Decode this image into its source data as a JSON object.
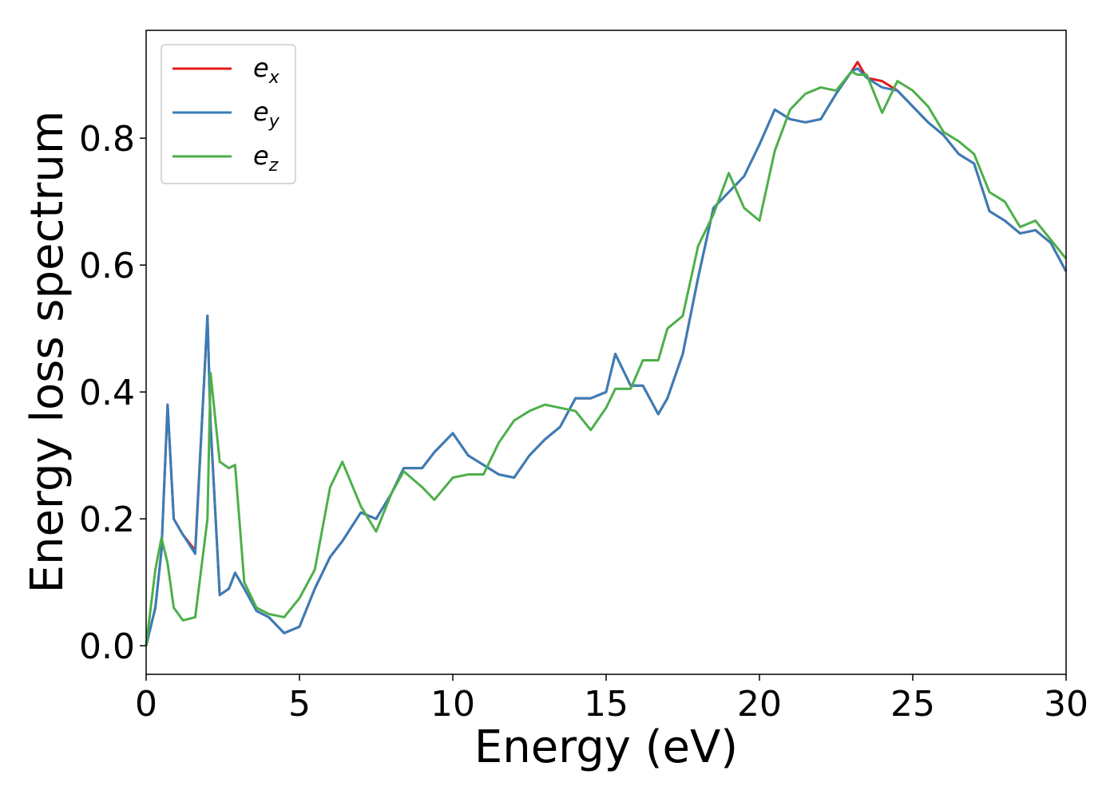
{
  "chart_data": {
    "type": "line",
    "xlabel": "Energy (eV)",
    "ylabel": "Energy loss spectrum",
    "x": [
      0,
      0.3,
      0.5,
      0.7,
      0.9,
      1.2,
      1.6,
      2.0,
      2.1,
      2.4,
      2.7,
      2.9,
      3.2,
      3.6,
      4.0,
      4.5,
      5.0,
      5.5,
      6.0,
      6.4,
      7.0,
      7.5,
      8.0,
      8.4,
      9.0,
      9.4,
      10.0,
      10.5,
      11.0,
      11.5,
      12.0,
      12.5,
      13.0,
      13.5,
      14.0,
      14.5,
      15.0,
      15.3,
      15.8,
      16.2,
      16.7,
      17.0,
      17.5,
      18.0,
      18.5,
      19.0,
      19.5,
      20.0,
      20.5,
      21.0,
      21.5,
      22.0,
      22.5,
      23.0,
      23.2,
      23.5,
      24.0,
      24.5,
      25.0,
      25.5,
      26.0,
      26.5,
      27.0,
      27.5,
      28.0,
      28.5,
      29.0,
      29.5,
      30.0
    ],
    "series": [
      {
        "name": "e_x",
        "color": "#e41a1c",
        "values": [
          0.0,
          0.06,
          0.15,
          0.38,
          0.2,
          0.175,
          0.15,
          0.52,
          0.35,
          0.08,
          0.09,
          0.115,
          0.09,
          0.055,
          0.045,
          0.02,
          0.03,
          0.09,
          0.14,
          0.165,
          0.21,
          0.2,
          0.24,
          0.28,
          0.28,
          0.305,
          0.335,
          0.3,
          0.285,
          0.27,
          0.265,
          0.3,
          0.325,
          0.345,
          0.39,
          0.39,
          0.4,
          0.46,
          0.41,
          0.41,
          0.365,
          0.39,
          0.46,
          0.58,
          0.69,
          0.715,
          0.74,
          0.79,
          0.845,
          0.83,
          0.825,
          0.83,
          0.87,
          0.905,
          0.92,
          0.895,
          0.89,
          0.875,
          0.85,
          0.825,
          0.805,
          0.775,
          0.76,
          0.685,
          0.67,
          0.65,
          0.655,
          0.635,
          0.59
        ]
      },
      {
        "name": "e_y",
        "color": "#377eb8",
        "values": [
          0.0,
          0.06,
          0.15,
          0.38,
          0.2,
          0.175,
          0.145,
          0.52,
          0.35,
          0.08,
          0.09,
          0.115,
          0.09,
          0.055,
          0.045,
          0.02,
          0.03,
          0.09,
          0.14,
          0.165,
          0.21,
          0.2,
          0.24,
          0.28,
          0.28,
          0.305,
          0.335,
          0.3,
          0.285,
          0.27,
          0.265,
          0.3,
          0.325,
          0.345,
          0.39,
          0.39,
          0.4,
          0.46,
          0.41,
          0.41,
          0.365,
          0.39,
          0.46,
          0.58,
          0.69,
          0.715,
          0.74,
          0.79,
          0.845,
          0.83,
          0.825,
          0.83,
          0.87,
          0.905,
          0.91,
          0.895,
          0.88,
          0.875,
          0.85,
          0.825,
          0.805,
          0.775,
          0.76,
          0.685,
          0.67,
          0.65,
          0.655,
          0.635,
          0.59
        ]
      },
      {
        "name": "e_z",
        "color": "#4daf4a",
        "values": [
          0.0,
          0.12,
          0.17,
          0.13,
          0.06,
          0.04,
          0.045,
          0.2,
          0.43,
          0.29,
          0.28,
          0.285,
          0.1,
          0.06,
          0.05,
          0.045,
          0.075,
          0.12,
          0.25,
          0.29,
          0.22,
          0.18,
          0.24,
          0.275,
          0.25,
          0.23,
          0.265,
          0.27,
          0.27,
          0.32,
          0.355,
          0.37,
          0.38,
          0.375,
          0.37,
          0.34,
          0.375,
          0.405,
          0.405,
          0.45,
          0.45,
          0.5,
          0.52,
          0.63,
          0.68,
          0.745,
          0.69,
          0.67,
          0.78,
          0.845,
          0.87,
          0.88,
          0.875,
          0.905,
          0.9,
          0.9,
          0.84,
          0.89,
          0.875,
          0.85,
          0.81,
          0.795,
          0.775,
          0.715,
          0.7,
          0.66,
          0.67,
          0.64,
          0.61
        ]
      }
    ],
    "xlim": [
      0,
      30
    ],
    "xticks": [
      0,
      5,
      10,
      15,
      20,
      25,
      30
    ],
    "ylim": [
      -0.045,
      0.97
    ],
    "yticks": [
      {
        "value": 0,
        "label": "0.0"
      },
      0.2,
      0.4,
      0.6,
      0.8
    ],
    "legend": "upper left",
    "grid": false
  }
}
